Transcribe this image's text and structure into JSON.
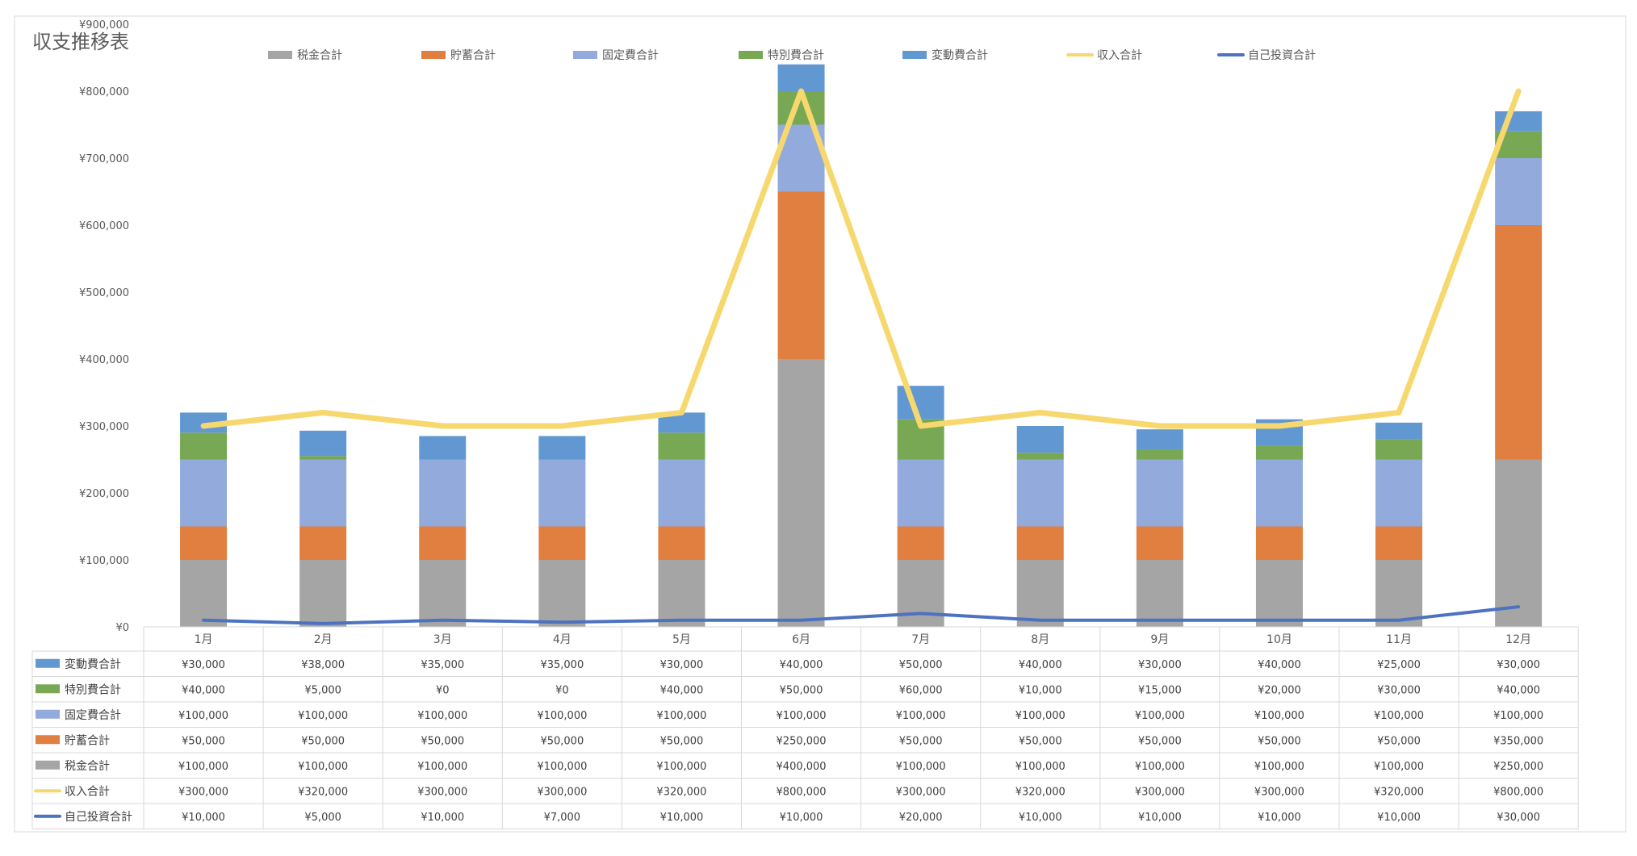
{
  "chart_data": {
    "type": "bar",
    "title": "収支推移表",
    "categories": [
      "1月",
      "2月",
      "3月",
      "4月",
      "5月",
      "6月",
      "7月",
      "8月",
      "9月",
      "10月",
      "11月",
      "12月"
    ],
    "ylim": [
      0,
      900000
    ],
    "yticks": [
      0,
      100000,
      200000,
      300000,
      400000,
      500000,
      600000,
      700000,
      800000,
      900000
    ],
    "ytick_labels": [
      "¥0",
      "¥100,000",
      "¥200,000",
      "¥300,000",
      "¥400,000",
      "¥500,000",
      "¥600,000",
      "¥700,000",
      "¥800,000",
      "¥900,000"
    ],
    "xlabel": "",
    "ylabel": "",
    "grid": false,
    "legend_position": "top",
    "series": [
      {
        "name": "税金合計",
        "kind": "bar",
        "color": "#a5a5a5",
        "values": [
          100000,
          100000,
          100000,
          100000,
          100000,
          400000,
          100000,
          100000,
          100000,
          100000,
          100000,
          250000
        ],
        "labels": [
          "¥100,000",
          "¥100,000",
          "¥100,000",
          "¥100,000",
          "¥100,000",
          "¥400,000",
          "¥100,000",
          "¥100,000",
          "¥100,000",
          "¥100,000",
          "¥100,000",
          "¥250,000"
        ]
      },
      {
        "name": "貯蓄合計",
        "kind": "bar",
        "color": "#e07f3f",
        "values": [
          50000,
          50000,
          50000,
          50000,
          50000,
          250000,
          50000,
          50000,
          50000,
          50000,
          50000,
          350000
        ],
        "labels": [
          "¥50,000",
          "¥50,000",
          "¥50,000",
          "¥50,000",
          "¥50,000",
          "¥250,000",
          "¥50,000",
          "¥50,000",
          "¥50,000",
          "¥50,000",
          "¥50,000",
          "¥350,000"
        ]
      },
      {
        "name": "固定費合計",
        "kind": "bar",
        "color": "#92aadc",
        "values": [
          100000,
          100000,
          100000,
          100000,
          100000,
          100000,
          100000,
          100000,
          100000,
          100000,
          100000,
          100000
        ],
        "labels": [
          "¥100,000",
          "¥100,000",
          "¥100,000",
          "¥100,000",
          "¥100,000",
          "¥100,000",
          "¥100,000",
          "¥100,000",
          "¥100,000",
          "¥100,000",
          "¥100,000",
          "¥100,000"
        ]
      },
      {
        "name": "特別費合計",
        "kind": "bar",
        "color": "#78a853",
        "values": [
          40000,
          5000,
          0,
          0,
          40000,
          50000,
          60000,
          10000,
          15000,
          20000,
          30000,
          40000
        ],
        "labels": [
          "¥40,000",
          "¥5,000",
          "¥0",
          "¥0",
          "¥40,000",
          "¥50,000",
          "¥60,000",
          "¥10,000",
          "¥15,000",
          "¥20,000",
          "¥30,000",
          "¥40,000"
        ]
      },
      {
        "name": "変動費合計",
        "kind": "bar",
        "color": "#6298d2",
        "values": [
          30000,
          38000,
          35000,
          35000,
          30000,
          40000,
          50000,
          40000,
          30000,
          40000,
          25000,
          30000
        ],
        "labels": [
          "¥30,000",
          "¥38,000",
          "¥35,000",
          "¥35,000",
          "¥30,000",
          "¥40,000",
          "¥50,000",
          "¥40,000",
          "¥30,000",
          "¥40,000",
          "¥25,000",
          "¥30,000"
        ]
      },
      {
        "name": "収入合計",
        "kind": "line",
        "color": "#f7d86e",
        "values": [
          300000,
          320000,
          300000,
          300000,
          320000,
          800000,
          300000,
          320000,
          300000,
          300000,
          320000,
          800000
        ],
        "labels": [
          "¥300,000",
          "¥320,000",
          "¥300,000",
          "¥300,000",
          "¥320,000",
          "¥800,000",
          "¥300,000",
          "¥320,000",
          "¥300,000",
          "¥300,000",
          "¥320,000",
          "¥800,000"
        ]
      },
      {
        "name": "自己投資合計",
        "kind": "line",
        "color": "#4c72c0",
        "values": [
          10000,
          5000,
          10000,
          7000,
          10000,
          10000,
          20000,
          10000,
          10000,
          10000,
          10000,
          30000
        ],
        "labels": [
          "¥10,000",
          "¥5,000",
          "¥10,000",
          "¥7,000",
          "¥10,000",
          "¥10,000",
          "¥20,000",
          "¥10,000",
          "¥10,000",
          "¥10,000",
          "¥10,000",
          "¥30,000"
        ]
      }
    ],
    "table_row_order": [
      "変動費合計",
      "特別費合計",
      "固定費合計",
      "貯蓄合計",
      "税金合計",
      "収入合計",
      "自己投資合計"
    ]
  }
}
